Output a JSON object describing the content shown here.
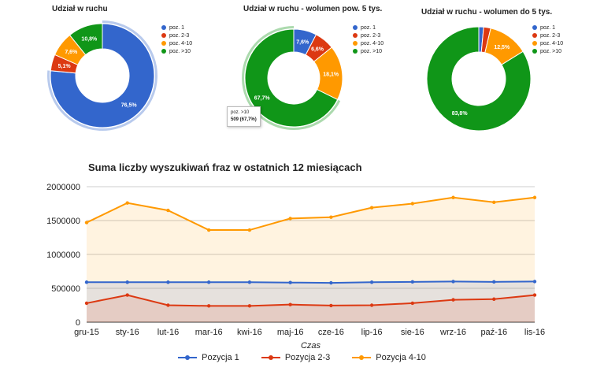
{
  "colors": {
    "pos1": "#3366cc",
    "pos23": "#dc3912",
    "pos410": "#ff9900",
    "pos10": "#109618"
  },
  "legend_labels": [
    "poz. 1",
    "poz. 2-3",
    "poz. 4-10",
    "poz. >10"
  ],
  "donuts": [
    {
      "title": "Udział w ruchu",
      "slices": [
        {
          "label": "poz. 1",
          "value": 76.5,
          "text": "76,5%"
        },
        {
          "label": "poz. 2-3",
          "value": 5.1,
          "text": "5,1%"
        },
        {
          "label": "poz. 4-10",
          "value": 7.6,
          "text": "7,6%"
        },
        {
          "label": "poz. >10",
          "value": 10.8,
          "text": "10,8%"
        }
      ]
    },
    {
      "title": "Udział w ruchu - wolumen pow. 5 tys.",
      "slices": [
        {
          "label": "poz. 1",
          "value": 7.6,
          "text": "7,6%"
        },
        {
          "label": "poz. 2-3",
          "value": 6.6,
          "text": "6,6%"
        },
        {
          "label": "poz. 4-10",
          "value": 18.1,
          "text": "18,1%"
        },
        {
          "label": "poz. >10",
          "value": 67.7,
          "text": "67,7%"
        }
      ],
      "tooltip": {
        "label": "poz. >10",
        "value": "509 (67,7%)"
      }
    },
    {
      "title": "Udział w ruchu - wolumen do 5 tys.",
      "slices": [
        {
          "label": "poz. 1",
          "value": 1.5,
          "text": ""
        },
        {
          "label": "poz. 2-3",
          "value": 2.2,
          "text": ""
        },
        {
          "label": "poz. 4-10",
          "value": 12.5,
          "text": "12,5%"
        },
        {
          "label": "poz. >10",
          "value": 83.8,
          "text": "83,8%"
        }
      ]
    }
  ],
  "chart_data": {
    "type": "area",
    "title": "Suma liczby wyszukiwań fraz w ostatnich 12 miesiącach",
    "xlabel": "Czas",
    "ylabel": "",
    "ylim": [
      0,
      2000000
    ],
    "yticks": [
      "0",
      "500000",
      "1000000",
      "1500000",
      "2000000"
    ],
    "categories": [
      "gru-15",
      "sty-16",
      "lut-16",
      "mar-16",
      "kwi-16",
      "maj-16",
      "cze-16",
      "lip-16",
      "sie-16",
      "wrz-16",
      "paź-16",
      "lis-16"
    ],
    "series": [
      {
        "name": "Pozycja 1",
        "values": [
          590000,
          590000,
          590000,
          590000,
          590000,
          585000,
          580000,
          590000,
          595000,
          600000,
          595000,
          600000
        ]
      },
      {
        "name": "Pozycja 2-3",
        "values": [
          280000,
          400000,
          250000,
          240000,
          240000,
          260000,
          245000,
          250000,
          280000,
          330000,
          340000,
          400000
        ]
      },
      {
        "name": "Pozycja 4-10",
        "values": [
          1470000,
          1760000,
          1650000,
          1360000,
          1360000,
          1530000,
          1550000,
          1690000,
          1750000,
          1840000,
          1770000,
          1840000
        ]
      }
    ],
    "grid": true,
    "legend": "bottom"
  }
}
